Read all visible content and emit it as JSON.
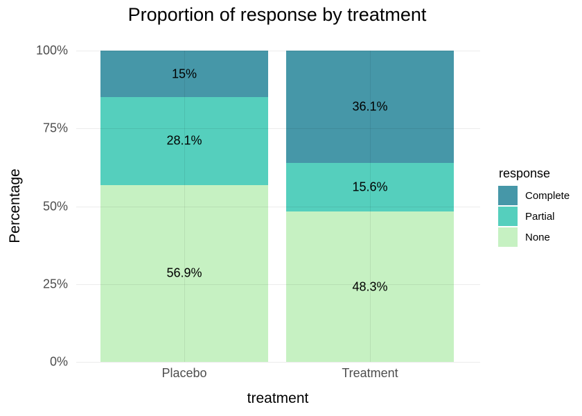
{
  "chart": {
    "title": "Proportion of response by treatment",
    "x_axis": {
      "title": "treatment",
      "categories": [
        "Placebo",
        "Treatment"
      ]
    },
    "y_axis": {
      "title": "Percentage",
      "tick_labels": [
        "0%",
        "25%",
        "50%",
        "75%",
        "100%"
      ],
      "tick_values": [
        0,
        25,
        50,
        75,
        100
      ]
    },
    "legend": {
      "title": "response",
      "items": [
        {
          "label": "Complete",
          "color": "#4697a8"
        },
        {
          "label": "Partial",
          "color": "#55cfbd"
        },
        {
          "label": "None",
          "color": "#c6f1c2"
        }
      ]
    }
  },
  "chart_data": {
    "type": "bar",
    "stacked": true,
    "title": "Proportion of response by treatment",
    "xlabel": "treatment",
    "ylabel": "Percentage",
    "ylim": [
      0,
      100
    ],
    "grid": true,
    "legend_position": "right",
    "categories": [
      "Placebo",
      "Treatment"
    ],
    "series": [
      {
        "name": "Complete",
        "values": [
          15,
          36.1
        ],
        "labels": [
          "15%",
          "36.1%"
        ],
        "color": "#4697a8"
      },
      {
        "name": "Partial",
        "values": [
          28.1,
          15.6
        ],
        "labels": [
          "28.1%",
          "15.6%"
        ],
        "color": "#55cfbd"
      },
      {
        "name": "None",
        "values": [
          56.9,
          48.3
        ],
        "labels": [
          "56.9%",
          "48.3%"
        ],
        "color": "#c6f1c2"
      }
    ]
  }
}
